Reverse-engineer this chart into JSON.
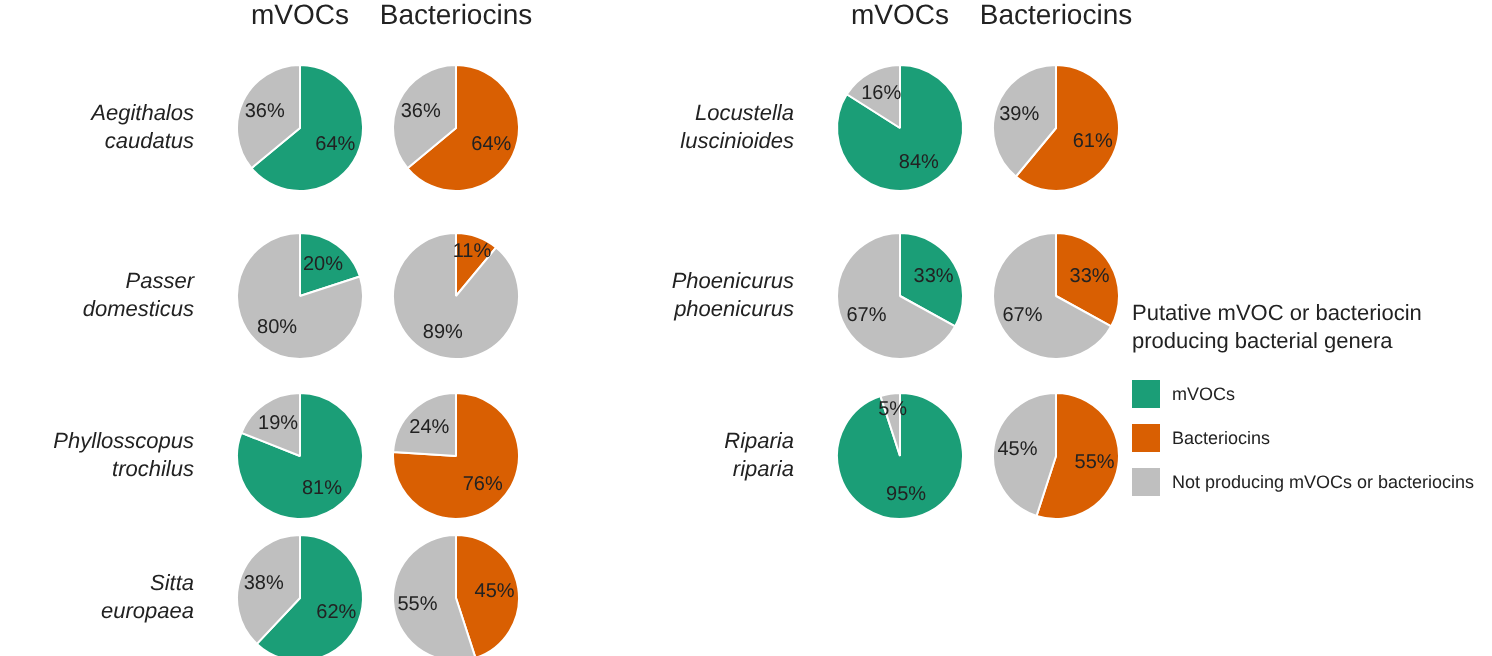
{
  "chart_data": [
    {
      "type": "pie",
      "title": "mVOCs",
      "ylabel": "Aegithalos caudatus",
      "categories": [
        null,
        null
      ],
      "values": [
        64,
        36
      ],
      "colors": [
        "#1b9e77",
        "#bfbfbf"
      ],
      "value_labels": [
        "64%",
        "36%"
      ]
    },
    {
      "type": "pie",
      "title": "Bacteriocins",
      "categories": [
        null,
        null
      ],
      "values": [
        64,
        36
      ],
      "colors": [
        "#d95f02",
        "#bfbfbf"
      ],
      "value_labels": [
        "64%",
        "36%"
      ]
    },
    {
      "type": "pie",
      "title": "mVOCs",
      "ylabel": "Locustella luscinioides",
      "categories": [
        null,
        null
      ],
      "values": [
        84,
        16
      ],
      "colors": [
        "#1b9e77",
        "#bfbfbf"
      ],
      "value_labels": [
        "84%",
        "16%"
      ]
    },
    {
      "type": "pie",
      "title": "Bacteriocins",
      "categories": [
        null,
        null
      ],
      "values": [
        61,
        39
      ],
      "colors": [
        "#d95f02",
        "#bfbfbf"
      ],
      "value_labels": [
        "61%",
        "39%"
      ]
    },
    {
      "type": "pie",
      "ylabel": "Passer domesticus",
      "categories": [
        null,
        null
      ],
      "values": [
        20,
        80
      ],
      "colors": [
        "#1b9e77",
        "#bfbfbf"
      ],
      "value_labels": [
        "20%",
        "80%"
      ]
    },
    {
      "type": "pie",
      "categories": [
        null,
        null
      ],
      "values": [
        11,
        89
      ],
      "colors": [
        "#d95f02",
        "#bfbfbf"
      ],
      "value_labels": [
        "11%",
        "89%"
      ]
    },
    {
      "type": "pie",
      "ylabel": "Phoenicurus phoenicurus",
      "categories": [
        null,
        null
      ],
      "values": [
        33,
        67
      ],
      "colors": [
        "#1b9e77",
        "#bfbfbf"
      ],
      "value_labels": [
        "33%",
        "67%"
      ]
    },
    {
      "type": "pie",
      "categories": [
        null,
        null
      ],
      "values": [
        33,
        67
      ],
      "colors": [
        "#d95f02",
        "#bfbfbf"
      ],
      "value_labels": [
        "33%",
        "67%"
      ]
    },
    {
      "type": "pie",
      "ylabel": "Phyllosscopus trochilus",
      "categories": [
        null,
        null
      ],
      "values": [
        81,
        19
      ],
      "colors": [
        "#1b9e77",
        "#bfbfbf"
      ],
      "value_labels": [
        "81%",
        "19%"
      ]
    },
    {
      "type": "pie",
      "categories": [
        null,
        null
      ],
      "values": [
        76,
        24
      ],
      "colors": [
        "#d95f02",
        "#bfbfbf"
      ],
      "value_labels": [
        "76%",
        "24%"
      ]
    },
    {
      "type": "pie",
      "ylabel": "Riparia riparia",
      "categories": [
        null,
        null
      ],
      "values": [
        95,
        5
      ],
      "colors": [
        "#1b9e77",
        "#bfbfbf"
      ],
      "value_labels": [
        "95%",
        "5%"
      ]
    },
    {
      "type": "pie",
      "categories": [
        null,
        null
      ],
      "values": [
        55,
        45
      ],
      "colors": [
        "#d95f02",
        "#bfbfbf"
      ],
      "value_labels": [
        "55%",
        "45%"
      ]
    },
    {
      "type": "pie",
      "ylabel": "Sitta europaea",
      "categories": [
        null,
        null
      ],
      "values": [
        62,
        38
      ],
      "colors": [
        "#1b9e77",
        "#bfbfbf"
      ],
      "value_labels": [
        "62%",
        "38%"
      ]
    },
    {
      "type": "pie",
      "categories": [
        null,
        null
      ],
      "values": [
        45,
        55
      ],
      "colors": [
        "#d95f02",
        "#bfbfbf"
      ],
      "value_labels": [
        "45%",
        "55%"
      ]
    },
    {
      "type": "other",
      "title": "Putative mVOC or bacteriocin producing bacterial genera",
      "categories": [
        "mVOCs",
        "Bacteriocins",
        "Not producing mVOCs or bacteriocins"
      ],
      "colors": [
        "#1b9e77",
        "#d95f02",
        "#bfbfbf"
      ]
    }
  ]
}
